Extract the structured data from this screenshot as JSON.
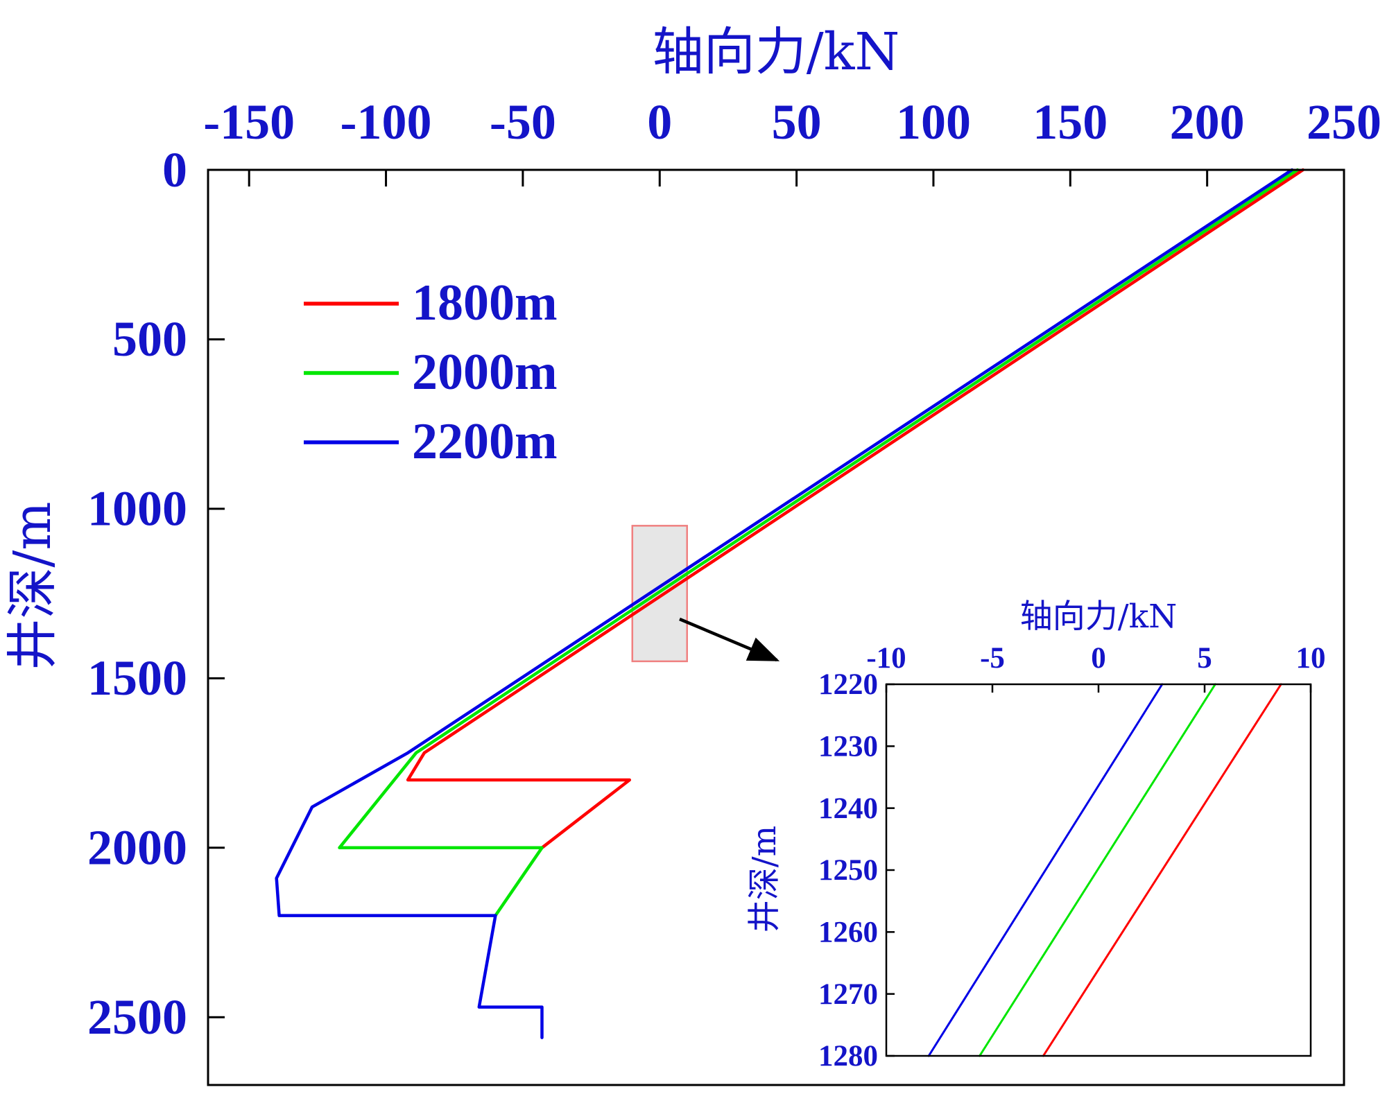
{
  "colors": {
    "text": "#1414c8",
    "frame": "#000000",
    "series_1800": "#ff0000",
    "series_2000": "#00e600",
    "series_2200": "#0000e6",
    "zoom_box_fill": "#e6e6e6",
    "zoom_box_stroke": "#f08080"
  },
  "chart_data": [
    {
      "type": "line",
      "xlabel": "轴向力/kN",
      "ylabel": "井深/m",
      "xlim": [
        -165,
        250
      ],
      "ylim": [
        0,
        2700
      ],
      "y_inverted": true,
      "x_axis_position": "top",
      "xticks": [
        -150,
        -100,
        -50,
        0,
        50,
        100,
        150,
        200,
        250
      ],
      "yticks": [
        0,
        500,
        1000,
        1500,
        2000,
        2500
      ],
      "legend": {
        "position": "upper-left",
        "entries": [
          "1800m",
          "2000m",
          "2200m"
        ]
      },
      "grid": false,
      "series": [
        {
          "name": "1800m",
          "color": "#ff0000",
          "points": [
            [
              235,
              0
            ],
            [
              -86,
              1720
            ],
            [
              -92,
              1800
            ],
            [
              -11,
              1800
            ],
            [
              -43,
              2000
            ]
          ]
        },
        {
          "name": "2000m",
          "color": "#00e600",
          "points": [
            [
              233,
              0
            ],
            [
              -89,
              1720
            ],
            [
              -117,
              2000
            ],
            [
              -43,
              2000
            ],
            [
              -60,
              2200
            ]
          ]
        },
        {
          "name": "2200m",
          "color": "#0000e6",
          "points": [
            [
              231,
              0
            ],
            [
              -92,
              1720
            ],
            [
              -127,
              1880
            ],
            [
              -140,
              2090
            ],
            [
              -139,
              2200
            ],
            [
              -60,
              2200
            ],
            [
              -66,
              2470
            ],
            [
              -43,
              2470
            ],
            [
              -43,
              2560
            ]
          ]
        }
      ],
      "zoom_region": {
        "x": [
          -10,
          10
        ],
        "y": [
          1050,
          1450
        ]
      }
    },
    {
      "type": "line",
      "xlabel": "轴向力/kN",
      "ylabel": "井深/m",
      "xlim": [
        -10,
        10
      ],
      "ylim": [
        1220,
        1280
      ],
      "y_inverted": true,
      "x_axis_position": "top",
      "xticks": [
        -10,
        -5,
        0,
        5,
        10
      ],
      "yticks": [
        1220,
        1230,
        1240,
        1250,
        1260,
        1270,
        1280
      ],
      "grid": false,
      "series": [
        {
          "name": "2200m",
          "color": "#0000e6",
          "points": [
            [
              3,
              1220
            ],
            [
              -8,
              1280
            ]
          ]
        },
        {
          "name": "2000m",
          "color": "#00e600",
          "points": [
            [
              5.5,
              1220
            ],
            [
              -5.6,
              1280
            ]
          ]
        },
        {
          "name": "1800m",
          "color": "#ff0000",
          "points": [
            [
              8.6,
              1220
            ],
            [
              -2.6,
              1280
            ]
          ]
        }
      ]
    }
  ]
}
